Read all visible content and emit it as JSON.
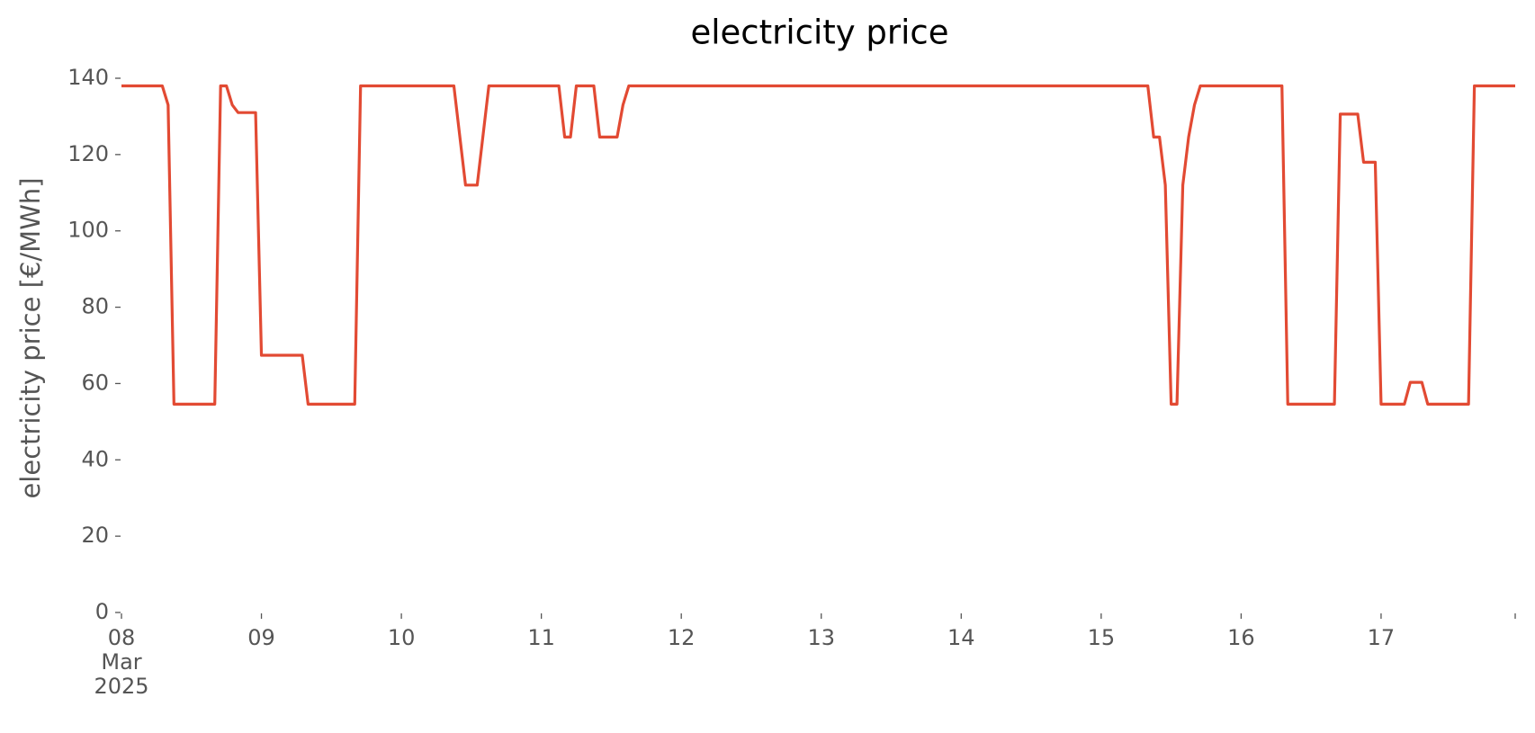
{
  "chart_data": {
    "type": "line",
    "title": "electricity price",
    "y_label": "electricity price [€/MWh]",
    "x": [
      "2025-03-08T00:00",
      "2025-03-08T07:00",
      "2025-03-08T08:00",
      "2025-03-08T09:00",
      "2025-03-08T16:00",
      "2025-03-08T17:00",
      "2025-03-08T18:00",
      "2025-03-08T19:00",
      "2025-03-08T20:00",
      "2025-03-08T23:00",
      "2025-03-09T00:00",
      "2025-03-09T07:00",
      "2025-03-09T08:00",
      "2025-03-09T16:00",
      "2025-03-09T17:00",
      "2025-03-10T09:00",
      "2025-03-10T11:00",
      "2025-03-10T13:00",
      "2025-03-10T15:00",
      "2025-03-11T03:00",
      "2025-03-11T04:00",
      "2025-03-11T05:00",
      "2025-03-11T06:00",
      "2025-03-11T09:00",
      "2025-03-11T10:00",
      "2025-03-11T13:00",
      "2025-03-11T14:00",
      "2025-03-11T15:00",
      "2025-03-15T08:00",
      "2025-03-15T09:00",
      "2025-03-15T10:00",
      "2025-03-15T11:00",
      "2025-03-15T12:00",
      "2025-03-15T13:00",
      "2025-03-15T14:00",
      "2025-03-15T15:00",
      "2025-03-15T16:00",
      "2025-03-15T17:00",
      "2025-03-16T07:00",
      "2025-03-16T08:00",
      "2025-03-16T16:00",
      "2025-03-16T17:00",
      "2025-03-16T20:00",
      "2025-03-16T21:00",
      "2025-03-16T23:00",
      "2025-03-17T00:00",
      "2025-03-17T04:00",
      "2025-03-17T05:00",
      "2025-03-17T07:00",
      "2025-03-17T08:00",
      "2025-03-17T15:00",
      "2025-03-17T16:00",
      "2025-03-17T23:00"
    ],
    "series": [
      {
        "name": "electricity price",
        "color": "#E24A33",
        "values": [
          138,
          138,
          133,
          54.6,
          54.6,
          138,
          138,
          133,
          131,
          131,
          67.4,
          67.4,
          54.6,
          54.6,
          138,
          138,
          112,
          112,
          138,
          138,
          124.6,
          124.6,
          138,
          138,
          124.6,
          124.6,
          133,
          138,
          138,
          124.6,
          124.6,
          112,
          54.6,
          54.6,
          112,
          124.6,
          133,
          138,
          138,
          54.6,
          54.6,
          130.6,
          130.6,
          118,
          118,
          54.6,
          54.6,
          60.3,
          60.3,
          54.6,
          54.6,
          138,
          138
        ]
      }
    ],
    "xlim": [
      "2025-03-08T00:00",
      "2025-03-17T23:00"
    ],
    "xticks": [
      {
        "value": "2025-03-08T00:00",
        "label": "08\nMar\n2025"
      },
      {
        "value": "2025-03-09T00:00",
        "label": "09"
      },
      {
        "value": "2025-03-10T00:00",
        "label": "10"
      },
      {
        "value": "2025-03-11T00:00",
        "label": "11"
      },
      {
        "value": "2025-03-12T00:00",
        "label": "12"
      },
      {
        "value": "2025-03-13T00:00",
        "label": "13"
      },
      {
        "value": "2025-03-14T00:00",
        "label": "14"
      },
      {
        "value": "2025-03-15T00:00",
        "label": "15"
      },
      {
        "value": "2025-03-16T00:00",
        "label": "16"
      },
      {
        "value": "2025-03-17T00:00",
        "label": "17"
      },
      {
        "value": "2025-03-17T23:00",
        "label": null
      }
    ],
    "ylim": [
      0,
      140
    ],
    "yticks": [
      0,
      20,
      40,
      60,
      80,
      100,
      120,
      140
    ],
    "grid": false
  }
}
